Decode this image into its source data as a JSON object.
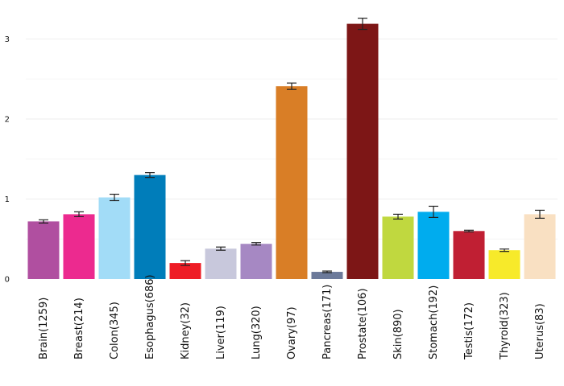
{
  "chart_data": {
    "type": "bar",
    "categories": [
      "Brain(1259)",
      "Breast(214)",
      "Colon(345)",
      "Esophagus(686)",
      "Kidney(32)",
      "Liver(119)",
      "Lung(320)",
      "Ovary(97)",
      "Pancreas(171)",
      "Prostate(106)",
      "Skin(890)",
      "Stomach(192)",
      "Testis(172)",
      "Thyroid(323)",
      "Uterus(83)"
    ],
    "values": [
      0.72,
      0.81,
      1.02,
      1.3,
      0.2,
      0.38,
      0.44,
      2.41,
      0.09,
      3.19,
      0.78,
      0.84,
      0.6,
      0.36,
      0.81
    ],
    "errors": [
      0.02,
      0.03,
      0.04,
      0.03,
      0.03,
      0.02,
      0.015,
      0.04,
      0.01,
      0.07,
      0.03,
      0.07,
      0.01,
      0.015,
      0.05
    ],
    "colors": [
      "#b04fa0",
      "#ec2a8f",
      "#a2dcf7",
      "#007dba",
      "#ee1c25",
      "#c8c8dc",
      "#a688c3",
      "#d97e26",
      "#6c7a9a",
      "#7d1616",
      "#c0d83f",
      "#00acee",
      "#c01f33",
      "#f7ea2a",
      "#f9e0c2"
    ],
    "title": "",
    "xlabel": "",
    "ylabel": "",
    "ylim": [
      0,
      3.3
    ],
    "yticks": [
      "0",
      "1",
      "2",
      "3"
    ],
    "grid": true,
    "legend": "none"
  }
}
